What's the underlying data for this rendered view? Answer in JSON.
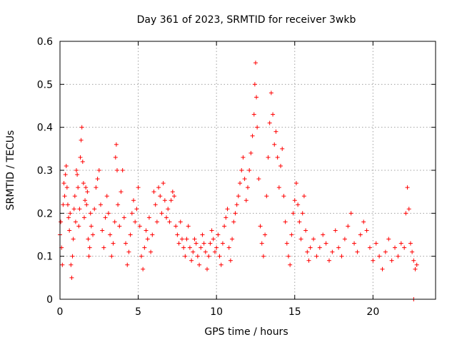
{
  "chart_data": {
    "type": "scatter",
    "title": "Day 361 of 2023, SRMTID for receiver 3wkb",
    "xlabel": "GPS time / hours",
    "ylabel": "SRMTID / TECUs",
    "xlim": [
      0,
      24
    ],
    "ylim": [
      0,
      0.6
    ],
    "xticks": [
      0,
      5,
      10,
      15,
      20
    ],
    "yticks": [
      0,
      0.1,
      0.2,
      0.3,
      0.4,
      0.5,
      0.6
    ],
    "xtick_labels": [
      "0",
      "5",
      "10",
      "15",
      "20"
    ],
    "ytick_labels": [
      "0",
      "0.1",
      "0.2",
      "0.3",
      "0.4",
      "0.5",
      "0.6"
    ],
    "grid": true,
    "marker": "plus",
    "color": "#ff0000",
    "series": [
      {
        "name": "SRMTID",
        "points": [
          [
            0.0,
            0.15
          ],
          [
            0.05,
            0.18
          ],
          [
            0.1,
            0.12
          ],
          [
            0.15,
            0.08
          ],
          [
            0.2,
            0.22
          ],
          [
            0.25,
            0.27
          ],
          [
            0.3,
            0.24
          ],
          [
            0.35,
            0.29
          ],
          [
            0.4,
            0.31
          ],
          [
            0.45,
            0.26
          ],
          [
            0.5,
            0.22
          ],
          [
            0.55,
            0.19
          ],
          [
            0.6,
            0.16
          ],
          [
            0.65,
            0.2
          ],
          [
            0.7,
            0.08
          ],
          [
            0.75,
            0.05
          ],
          [
            0.8,
            0.1
          ],
          [
            0.85,
            0.14
          ],
          [
            0.9,
            0.21
          ],
          [
            0.95,
            0.24
          ],
          [
            1.0,
            0.18
          ],
          [
            1.05,
            0.3
          ],
          [
            1.1,
            0.29
          ],
          [
            1.15,
            0.26
          ],
          [
            1.2,
            0.17
          ],
          [
            1.25,
            0.21
          ],
          [
            1.3,
            0.33
          ],
          [
            1.35,
            0.37
          ],
          [
            1.4,
            0.4
          ],
          [
            1.45,
            0.32
          ],
          [
            1.5,
            0.27
          ],
          [
            1.55,
            0.19
          ],
          [
            1.6,
            0.23
          ],
          [
            1.65,
            0.26
          ],
          [
            1.7,
            0.22
          ],
          [
            1.75,
            0.25
          ],
          [
            1.8,
            0.14
          ],
          [
            1.85,
            0.1
          ],
          [
            1.9,
            0.12
          ],
          [
            1.95,
            0.2
          ],
          [
            2.0,
            0.17
          ],
          [
            2.1,
            0.15
          ],
          [
            2.2,
            0.21
          ],
          [
            2.3,
            0.26
          ],
          [
            2.4,
            0.28
          ],
          [
            2.5,
            0.3
          ],
          [
            2.6,
            0.22
          ],
          [
            2.7,
            0.16
          ],
          [
            2.8,
            0.12
          ],
          [
            2.9,
            0.19
          ],
          [
            3.0,
            0.24
          ],
          [
            3.1,
            0.2
          ],
          [
            3.2,
            0.15
          ],
          [
            3.3,
            0.1
          ],
          [
            3.4,
            0.13
          ],
          [
            3.5,
            0.18
          ],
          [
            3.55,
            0.33
          ],
          [
            3.6,
            0.36
          ],
          [
            3.65,
            0.3
          ],
          [
            3.7,
            0.22
          ],
          [
            3.8,
            0.17
          ],
          [
            3.9,
            0.25
          ],
          [
            4.0,
            0.3
          ],
          [
            4.1,
            0.19
          ],
          [
            4.2,
            0.13
          ],
          [
            4.3,
            0.08
          ],
          [
            4.4,
            0.11
          ],
          [
            4.5,
            0.15
          ],
          [
            4.6,
            0.2
          ],
          [
            4.7,
            0.23
          ],
          [
            4.8,
            0.18
          ],
          [
            4.9,
            0.21
          ],
          [
            5.0,
            0.26
          ],
          [
            5.1,
            0.17
          ],
          [
            5.2,
            0.1
          ],
          [
            5.3,
            0.07
          ],
          [
            5.4,
            0.12
          ],
          [
            5.5,
            0.16
          ],
          [
            5.6,
            0.14
          ],
          [
            5.7,
            0.19
          ],
          [
            5.8,
            0.11
          ],
          [
            5.9,
            0.15
          ],
          [
            6.0,
            0.25
          ],
          [
            6.1,
            0.22
          ],
          [
            6.2,
            0.18
          ],
          [
            6.3,
            0.26
          ],
          [
            6.4,
            0.24
          ],
          [
            6.5,
            0.2
          ],
          [
            6.6,
            0.27
          ],
          [
            6.7,
            0.23
          ],
          [
            6.8,
            0.19
          ],
          [
            6.9,
            0.21
          ],
          [
            7.0,
            0.18
          ],
          [
            7.1,
            0.23
          ],
          [
            7.2,
            0.25
          ],
          [
            7.3,
            0.24
          ],
          [
            7.4,
            0.17
          ],
          [
            7.5,
            0.15
          ],
          [
            7.6,
            0.13
          ],
          [
            7.7,
            0.18
          ],
          [
            7.8,
            0.14
          ],
          [
            7.9,
            0.12
          ],
          [
            8.0,
            0.1
          ],
          [
            8.1,
            0.14
          ],
          [
            8.2,
            0.17
          ],
          [
            8.3,
            0.12
          ],
          [
            8.4,
            0.09
          ],
          [
            8.5,
            0.11
          ],
          [
            8.6,
            0.14
          ],
          [
            8.7,
            0.13
          ],
          [
            8.8,
            0.1
          ],
          [
            8.9,
            0.08
          ],
          [
            9.0,
            0.12
          ],
          [
            9.1,
            0.15
          ],
          [
            9.2,
            0.13
          ],
          [
            9.3,
            0.11
          ],
          [
            9.4,
            0.07
          ],
          [
            9.5,
            0.1
          ],
          [
            9.6,
            0.13
          ],
          [
            9.7,
            0.16
          ],
          [
            9.8,
            0.14
          ],
          [
            9.9,
            0.11
          ],
          [
            10.0,
            0.12
          ],
          [
            10.1,
            0.15
          ],
          [
            10.2,
            0.1
          ],
          [
            10.3,
            0.08
          ],
          [
            10.4,
            0.13
          ],
          [
            10.5,
            0.17
          ],
          [
            10.6,
            0.19
          ],
          [
            10.7,
            0.21
          ],
          [
            10.8,
            0.12
          ],
          [
            10.9,
            0.09
          ],
          [
            11.0,
            0.14
          ],
          [
            11.1,
            0.18
          ],
          [
            11.2,
            0.2
          ],
          [
            11.3,
            0.22
          ],
          [
            11.4,
            0.24
          ],
          [
            11.5,
            0.27
          ],
          [
            11.6,
            0.3
          ],
          [
            11.7,
            0.33
          ],
          [
            11.8,
            0.28
          ],
          [
            11.9,
            0.23
          ],
          [
            12.0,
            0.26
          ],
          [
            12.1,
            0.3
          ],
          [
            12.2,
            0.34
          ],
          [
            12.3,
            0.38
          ],
          [
            12.4,
            0.43
          ],
          [
            12.45,
            0.5
          ],
          [
            12.5,
            0.55
          ],
          [
            12.55,
            0.47
          ],
          [
            12.6,
            0.4
          ],
          [
            12.7,
            0.28
          ],
          [
            12.8,
            0.17
          ],
          [
            12.9,
            0.13
          ],
          [
            13.0,
            0.1
          ],
          [
            13.1,
            0.15
          ],
          [
            13.2,
            0.24
          ],
          [
            13.3,
            0.33
          ],
          [
            13.4,
            0.41
          ],
          [
            13.5,
            0.48
          ],
          [
            13.6,
            0.43
          ],
          [
            13.7,
            0.36
          ],
          [
            13.8,
            0.39
          ],
          [
            13.9,
            0.33
          ],
          [
            14.0,
            0.26
          ],
          [
            14.1,
            0.31
          ],
          [
            14.2,
            0.35
          ],
          [
            14.3,
            0.24
          ],
          [
            14.4,
            0.18
          ],
          [
            14.5,
            0.13
          ],
          [
            14.6,
            0.1
          ],
          [
            14.7,
            0.08
          ],
          [
            14.8,
            0.15
          ],
          [
            14.9,
            0.2
          ],
          [
            15.0,
            0.23
          ],
          [
            15.1,
            0.27
          ],
          [
            15.2,
            0.22
          ],
          [
            15.3,
            0.18
          ],
          [
            15.4,
            0.14
          ],
          [
            15.5,
            0.2
          ],
          [
            15.6,
            0.24
          ],
          [
            15.7,
            0.16
          ],
          [
            15.8,
            0.11
          ],
          [
            15.9,
            0.09
          ],
          [
            16.0,
            0.12
          ],
          [
            16.2,
            0.14
          ],
          [
            16.4,
            0.1
          ],
          [
            16.6,
            0.12
          ],
          [
            16.8,
            0.15
          ],
          [
            17.0,
            0.13
          ],
          [
            17.2,
            0.09
          ],
          [
            17.4,
            0.11
          ],
          [
            17.6,
            0.16
          ],
          [
            17.8,
            0.12
          ],
          [
            18.0,
            0.1
          ],
          [
            18.2,
            0.14
          ],
          [
            18.4,
            0.17
          ],
          [
            18.6,
            0.2
          ],
          [
            18.8,
            0.13
          ],
          [
            19.0,
            0.11
          ],
          [
            19.2,
            0.15
          ],
          [
            19.4,
            0.18
          ],
          [
            19.6,
            0.16
          ],
          [
            19.8,
            0.12
          ],
          [
            20.0,
            0.09
          ],
          [
            20.2,
            0.13
          ],
          [
            20.4,
            0.1
          ],
          [
            20.6,
            0.07
          ],
          [
            20.8,
            0.11
          ],
          [
            21.0,
            0.14
          ],
          [
            21.2,
            0.09
          ],
          [
            21.4,
            0.12
          ],
          [
            21.6,
            0.1
          ],
          [
            21.8,
            0.13
          ],
          [
            22.0,
            0.12
          ],
          [
            22.1,
            0.2
          ],
          [
            22.2,
            0.26
          ],
          [
            22.3,
            0.21
          ],
          [
            22.4,
            0.13
          ],
          [
            22.5,
            0.11
          ],
          [
            22.6,
            0.09
          ],
          [
            22.7,
            0.07
          ],
          [
            22.8,
            0.08
          ],
          [
            22.6,
            0.0
          ]
        ]
      }
    ]
  }
}
